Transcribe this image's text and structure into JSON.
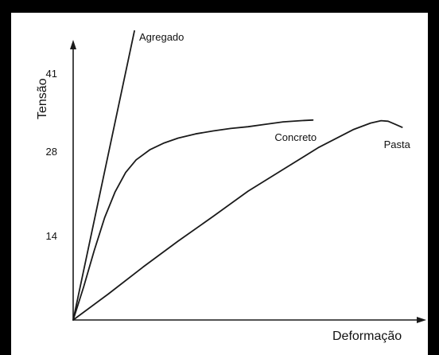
{
  "chart_data": {
    "type": "line",
    "title": "",
    "xlabel": "Deformação",
    "ylabel": "Tensão",
    "xlim": [
      0,
      100
    ],
    "ylim": [
      0,
      46
    ],
    "yticks": [
      14,
      28,
      41
    ],
    "grid": false,
    "legend": "inline labels at line ends",
    "colors": {
      "line": "#1a1a1a",
      "axis": "#1a1a1a",
      "background": "#ffffff",
      "border": "#000000"
    },
    "series": [
      {
        "name": "Agregado",
        "x": [
          0,
          17.5
        ],
        "y": [
          0,
          48.0
        ]
      },
      {
        "name": "Concreto",
        "x": [
          0,
          3,
          6,
          9,
          12,
          15,
          18,
          22,
          26,
          30,
          35,
          40,
          45,
          50,
          55,
          60,
          65,
          68.5
        ],
        "y": [
          0,
          5.5,
          11.5,
          17.0,
          21.3,
          24.5,
          26.6,
          28.3,
          29.4,
          30.2,
          30.9,
          31.4,
          31.8,
          32.1,
          32.5,
          32.9,
          33.1,
          33.2
        ]
      },
      {
        "name": "Pasta",
        "x": [
          0,
          10,
          20,
          30,
          40,
          50,
          60,
          70,
          80,
          85,
          88,
          90,
          92,
          94
        ],
        "y": [
          0,
          4.3,
          8.8,
          13.1,
          17.2,
          21.4,
          25.0,
          28.6,
          31.6,
          32.7,
          33.1,
          33.0,
          32.5,
          32.0
        ]
      }
    ]
  }
}
